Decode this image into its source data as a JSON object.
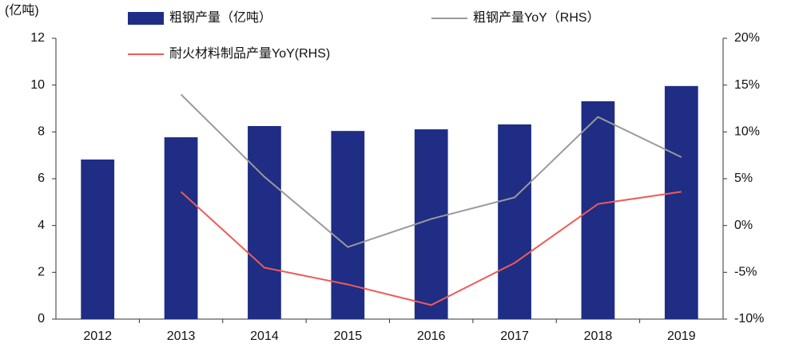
{
  "chart_data": {
    "type": "bar",
    "y_unit_label": "(亿吨)",
    "categories": [
      "2012",
      "2013",
      "2014",
      "2015",
      "2016",
      "2017",
      "2018",
      "2019"
    ],
    "series": [
      {
        "name": "粗钢产量（亿吨）",
        "type": "bar",
        "axis": "y",
        "color": "#1f2d85",
        "values": [
          6.82,
          7.77,
          8.25,
          8.04,
          8.11,
          8.32,
          9.31,
          9.96
        ]
      },
      {
        "name": "粗钢产量YoY（RHS）",
        "type": "line",
        "axis": "y2",
        "color": "#9a9a9a",
        "values": [
          null,
          14.0,
          5.2,
          -2.3,
          0.7,
          3.0,
          11.6,
          7.3
        ]
      },
      {
        "name": "耐火材料制品产量YoY(RHS)",
        "type": "line",
        "axis": "y2",
        "color": "#ef5b57",
        "values": [
          null,
          3.6,
          -4.5,
          -6.3,
          -8.5,
          -4.0,
          2.3,
          3.6
        ]
      }
    ],
    "ylim": [
      0,
      12
    ],
    "yticks": [
      0,
      2,
      4,
      6,
      8,
      10,
      12
    ],
    "y2lim": [
      -10,
      20
    ],
    "y2ticks": [
      {
        "value": -10,
        "label": "-10%"
      },
      {
        "value": -5,
        "label": "-5%"
      },
      {
        "value": 0,
        "label": "0%"
      },
      {
        "value": 5,
        "label": "5%"
      },
      {
        "value": 10,
        "label": "10%"
      },
      {
        "value": 15,
        "label": "15%"
      },
      {
        "value": 20,
        "label": "20%"
      }
    ],
    "grid": false
  }
}
